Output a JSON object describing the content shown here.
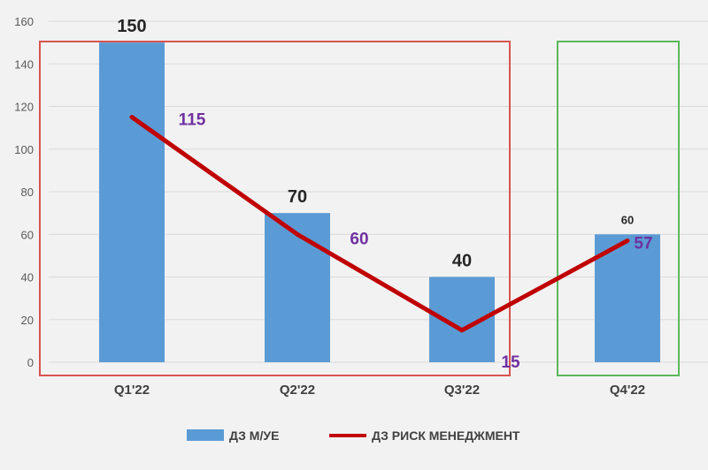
{
  "chart_data": {
    "type": "bar",
    "categories": [
      "Q1'22",
      "Q2'22",
      "Q3'22",
      "Q4'22"
    ],
    "series": [
      {
        "name": "ДЗ  М/УЕ",
        "type": "bar",
        "values": [
          150,
          70,
          40,
          60
        ],
        "color": "#5b9bd5"
      },
      {
        "name": "ДЗ РИСК МЕНЕДЖМЕНТ",
        "type": "line",
        "values": [
          115,
          60,
          15,
          57
        ],
        "color": "#c00000"
      }
    ],
    "bar_labels": [
      "150",
      "70",
      "40",
      "60"
    ],
    "line_labels": [
      "115",
      "60",
      "15",
      "57"
    ],
    "yticks": [
      "0",
      "20",
      "40",
      "60",
      "80",
      "100",
      "120",
      "140",
      "160"
    ],
    "ylim": [
      0,
      160
    ],
    "grid": true,
    "legend_position": "bottom",
    "highlight_boxes": [
      {
        "categories": [
          "Q1'22",
          "Q2'22",
          "Q3'22"
        ],
        "color": "#d9534f"
      },
      {
        "categories": [
          "Q4'22"
        ],
        "color": "#5cb85c"
      }
    ]
  }
}
